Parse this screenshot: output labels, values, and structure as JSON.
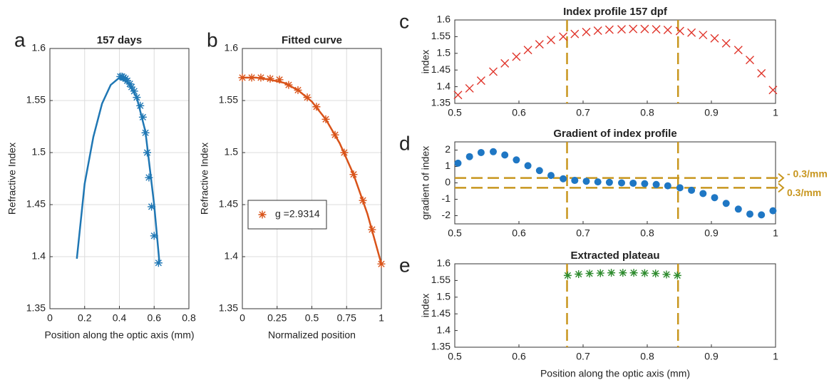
{
  "chart_data": [
    {
      "type": "line",
      "label": "a",
      "title": "157 days",
      "xlabel": "Position along the optic axis (mm)",
      "ylabel": "Refractive Index",
      "xlim": [
        0,
        0.8
      ],
      "ylim": [
        1.35,
        1.6
      ],
      "xticks": [
        0,
        0.2,
        0.4,
        0.6,
        0.8
      ],
      "yticks": [
        1.35,
        1.4,
        1.45,
        1.5,
        1.55,
        1.6
      ],
      "grid": true,
      "series": [
        {
          "marker": "line",
          "color": "#1f77b4",
          "x": [
            0.155,
            0.2,
            0.25,
            0.3,
            0.35,
            0.4,
            0.45,
            0.5,
            0.55,
            0.6,
            0.63
          ],
          "values": [
            1.398,
            1.47,
            1.515,
            1.547,
            1.565,
            1.572,
            1.567,
            1.553,
            1.52,
            1.45,
            1.395
          ]
        },
        {
          "marker": "star",
          "color": "#1f77b4",
          "x": [
            0.405,
            0.415,
            0.425,
            0.435,
            0.445,
            0.46,
            0.47,
            0.485,
            0.5,
            0.52,
            0.535,
            0.55,
            0.56,
            0.57,
            0.585,
            0.6,
            0.625
          ],
          "values": [
            1.573,
            1.573,
            1.572,
            1.571,
            1.569,
            1.566,
            1.563,
            1.559,
            1.553,
            1.545,
            1.534,
            1.519,
            1.5,
            1.476,
            1.448,
            1.42,
            1.394
          ]
        }
      ]
    },
    {
      "type": "line",
      "label": "b",
      "title": "Fitted curve",
      "xlabel": "Normalized position",
      "ylabel": "Refractive Index",
      "xlim": [
        0,
        1
      ],
      "ylim": [
        1.35,
        1.6
      ],
      "xticks": [
        0,
        0.25,
        0.5,
        0.75,
        1
      ],
      "yticks": [
        1.35,
        1.4,
        1.45,
        1.5,
        1.55,
        1.6
      ],
      "grid": true,
      "legend": "lower left",
      "series": [
        {
          "marker": "line",
          "color": "#d95319",
          "x": [
            0,
            0.1,
            0.2,
            0.3,
            0.4,
            0.5,
            0.6,
            0.7,
            0.8,
            0.9,
            1
          ],
          "values": [
            1.572,
            1.572,
            1.57,
            1.567,
            1.56,
            1.549,
            1.532,
            1.509,
            1.479,
            1.441,
            1.393
          ]
        },
        {
          "name": "g =2.9314",
          "marker": "star",
          "color": "#d95319",
          "x": [
            0,
            0.067,
            0.133,
            0.2,
            0.267,
            0.333,
            0.4,
            0.467,
            0.533,
            0.6,
            0.667,
            0.733,
            0.8,
            0.867,
            0.933,
            1
          ],
          "values": [
            1.572,
            1.572,
            1.572,
            1.571,
            1.57,
            1.565,
            1.56,
            1.553,
            1.544,
            1.532,
            1.517,
            1.5,
            1.479,
            1.454,
            1.426,
            1.393
          ]
        }
      ]
    },
    {
      "type": "scatter",
      "label": "c",
      "title": "Index profile 157 dpf",
      "ylabel": "index",
      "xlim": [
        0.5,
        1
      ],
      "ylim": [
        1.35,
        1.6
      ],
      "xticks": [
        0.5,
        0.6,
        0.7,
        0.8,
        0.9,
        1
      ],
      "yticks": [
        1.35,
        1.4,
        1.45,
        1.5,
        1.55,
        1.6
      ],
      "grid": false,
      "vlines": [
        0.675,
        0.848
      ],
      "guide_color": "#c8961e",
      "series": [
        {
          "marker": "x",
          "color": "#e0352b",
          "x": [
            0.505,
            0.523,
            0.541,
            0.56,
            0.578,
            0.596,
            0.614,
            0.632,
            0.65,
            0.669,
            0.687,
            0.705,
            0.723,
            0.741,
            0.76,
            0.778,
            0.796,
            0.814,
            0.832,
            0.851,
            0.869,
            0.887,
            0.905,
            0.923,
            0.942,
            0.96,
            0.978,
            0.996
          ],
          "values": [
            1.375,
            1.395,
            1.418,
            1.445,
            1.47,
            1.49,
            1.51,
            1.527,
            1.54,
            1.55,
            1.558,
            1.564,
            1.568,
            1.571,
            1.572,
            1.573,
            1.573,
            1.572,
            1.57,
            1.567,
            1.562,
            1.555,
            1.545,
            1.53,
            1.51,
            1.48,
            1.44,
            1.39
          ]
        }
      ]
    },
    {
      "type": "scatter",
      "label": "d",
      "title": "Gradient of index profile",
      "ylabel": "gradient of index",
      "xlim": [
        0.5,
        1
      ],
      "ylim": [
        -2.5,
        2.5
      ],
      "xticks": [
        0.5,
        0.6,
        0.7,
        0.8,
        0.9,
        1
      ],
      "yticks": [
        -2,
        -1,
        0,
        1,
        2
      ],
      "grid": false,
      "vlines": [
        0.675,
        0.848
      ],
      "hlines": [
        0.3,
        -0.3
      ],
      "guide_color": "#c8961e",
      "annotations": [
        {
          "text": "- 0.3/mm",
          "y": 0.3
        },
        {
          "text": "0.3/mm",
          "y": -0.3
        }
      ],
      "series": [
        {
          "marker": "dot",
          "color": "#1f77c4",
          "x": [
            0.505,
            0.523,
            0.541,
            0.56,
            0.578,
            0.596,
            0.614,
            0.632,
            0.65,
            0.669,
            0.687,
            0.705,
            0.723,
            0.741,
            0.76,
            0.778,
            0.796,
            0.814,
            0.832,
            0.851,
            0.869,
            0.887,
            0.905,
            0.923,
            0.942,
            0.96,
            0.978,
            0.996
          ],
          "values": [
            1.2,
            1.6,
            1.85,
            1.9,
            1.7,
            1.4,
            1.05,
            0.75,
            0.45,
            0.25,
            0.15,
            0.1,
            0.06,
            0.03,
            0,
            -0.02,
            -0.05,
            -0.1,
            -0.18,
            -0.3,
            -0.45,
            -0.65,
            -0.9,
            -1.25,
            -1.6,
            -1.9,
            -1.95,
            -1.7
          ]
        }
      ]
    },
    {
      "type": "scatter",
      "label": "e",
      "title": "Extracted plateau",
      "xlabel": "Position along the optic axis (mm)",
      "ylabel": "index",
      "xlim": [
        0.5,
        1
      ],
      "ylim": [
        1.35,
        1.6
      ],
      "xticks": [
        0.5,
        0.6,
        0.7,
        0.8,
        0.9,
        1
      ],
      "yticks": [
        1.35,
        1.4,
        1.45,
        1.5,
        1.55,
        1.6
      ],
      "grid": false,
      "vlines": [
        0.675,
        0.848
      ],
      "guide_color": "#c8961e",
      "series": [
        {
          "marker": "star",
          "color": "#2e8b2e",
          "x": [
            0.676,
            0.693,
            0.71,
            0.727,
            0.744,
            0.762,
            0.779,
            0.796,
            0.813,
            0.83,
            0.847
          ],
          "values": [
            1.565,
            1.569,
            1.571,
            1.572,
            1.573,
            1.573,
            1.573,
            1.572,
            1.571,
            1.568,
            1.565
          ]
        }
      ]
    }
  ]
}
